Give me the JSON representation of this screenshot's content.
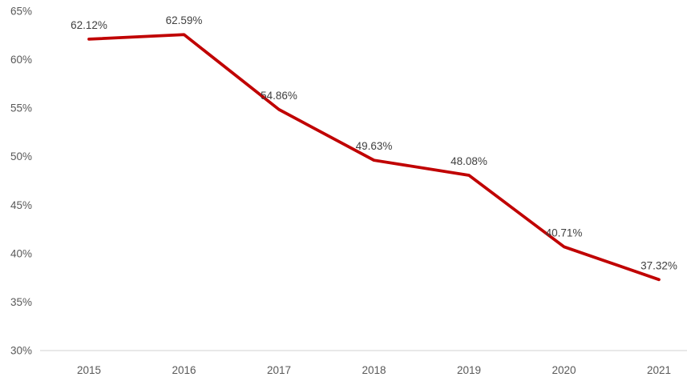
{
  "chart_data": {
    "type": "line",
    "title": "",
    "xlabel": "",
    "ylabel": "",
    "categories": [
      "2015",
      "2016",
      "2017",
      "2018",
      "2019",
      "2020",
      "2021"
    ],
    "series": [
      {
        "name": "series-1",
        "values": [
          62.12,
          62.59,
          54.86,
          49.63,
          48.08,
          40.71,
          37.32
        ],
        "data_labels": [
          "62.12%",
          "62.59%",
          "54.86%",
          "49.63%",
          "48.08%",
          "40.71%",
          "37.32%"
        ]
      }
    ],
    "y_ticks": [
      {
        "value": 65,
        "label": "65%"
      },
      {
        "value": 60,
        "label": "60%"
      },
      {
        "value": 55,
        "label": "55%"
      },
      {
        "value": 50,
        "label": "50%"
      },
      {
        "value": 45,
        "label": "45%"
      },
      {
        "value": 40,
        "label": "40%"
      },
      {
        "value": 35,
        "label": "35%"
      },
      {
        "value": 30,
        "label": "30%"
      }
    ],
    "ylim": [
      30,
      65
    ],
    "grid": false,
    "legend_position": "none",
    "colors": {
      "line": "#C00000",
      "data_label": "#404040",
      "axis_label": "#595959",
      "axis_line": "#D9D9D9",
      "background": "#FFFFFF"
    }
  }
}
